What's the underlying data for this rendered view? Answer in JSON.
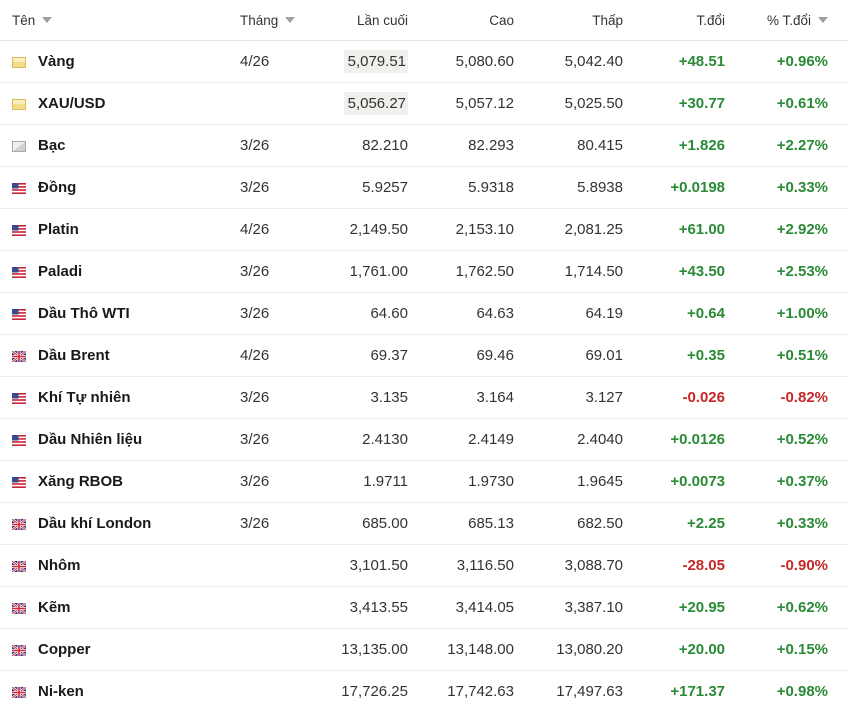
{
  "header": {
    "name": "Tên",
    "month": "Tháng",
    "last": "Lần cuối",
    "high": "Cao",
    "low": "Thấp",
    "change": "T.đổi",
    "pct_change": "% T.đổi"
  },
  "colors": {
    "up": "#2a8a36",
    "down": "#c62828",
    "highlight_bg": "#eef1ec"
  },
  "rows": [
    {
      "flag": "gold-icon",
      "name": "Vàng",
      "month": "4/26",
      "last": "5,079.51",
      "high": "5,080.60",
      "low": "5,042.40",
      "change": "+48.51",
      "pct": "+0.96%",
      "dir": "up",
      "hl": true
    },
    {
      "flag": "gold-icon",
      "name": "XAU/USD",
      "month": "",
      "last": "5,056.27",
      "high": "5,057.12",
      "low": "5,025.50",
      "change": "+30.77",
      "pct": "+0.61%",
      "dir": "up",
      "hl": true
    },
    {
      "flag": "silver-icon",
      "name": "Bạc",
      "month": "3/26",
      "last": "82.210",
      "high": "82.293",
      "low": "80.415",
      "change": "+1.826",
      "pct": "+2.27%",
      "dir": "up",
      "hl": false
    },
    {
      "flag": "us-flag-icon",
      "name": "Đồng",
      "month": "3/26",
      "last": "5.9257",
      "high": "5.9318",
      "low": "5.8938",
      "change": "+0.0198",
      "pct": "+0.33%",
      "dir": "up",
      "hl": false
    },
    {
      "flag": "us-flag-icon",
      "name": "Platin",
      "month": "4/26",
      "last": "2,149.50",
      "high": "2,153.10",
      "low": "2,081.25",
      "change": "+61.00",
      "pct": "+2.92%",
      "dir": "up",
      "hl": false
    },
    {
      "flag": "us-flag-icon",
      "name": "Paladi",
      "month": "3/26",
      "last": "1,761.00",
      "high": "1,762.50",
      "low": "1,714.50",
      "change": "+43.50",
      "pct": "+2.53%",
      "dir": "up",
      "hl": false
    },
    {
      "flag": "us-flag-icon",
      "name": "Dầu Thô WTI",
      "month": "3/26",
      "last": "64.60",
      "high": "64.63",
      "low": "64.19",
      "change": "+0.64",
      "pct": "+1.00%",
      "dir": "up",
      "hl": false
    },
    {
      "flag": "uk-flag-icon",
      "name": "Dầu Brent",
      "month": "4/26",
      "last": "69.37",
      "high": "69.46",
      "low": "69.01",
      "change": "+0.35",
      "pct": "+0.51%",
      "dir": "up",
      "hl": false
    },
    {
      "flag": "us-flag-icon",
      "name": "Khí Tự nhiên",
      "month": "3/26",
      "last": "3.135",
      "high": "3.164",
      "low": "3.127",
      "change": "-0.026",
      "pct": "-0.82%",
      "dir": "down",
      "hl": false
    },
    {
      "flag": "us-flag-icon",
      "name": "Dầu Nhiên liệu",
      "month": "3/26",
      "last": "2.4130",
      "high": "2.4149",
      "low": "2.4040",
      "change": "+0.0126",
      "pct": "+0.52%",
      "dir": "up",
      "hl": false
    },
    {
      "flag": "us-flag-icon",
      "name": "Xăng RBOB",
      "month": "3/26",
      "last": "1.9711",
      "high": "1.9730",
      "low": "1.9645",
      "change": "+0.0073",
      "pct": "+0.37%",
      "dir": "up",
      "hl": false
    },
    {
      "flag": "uk-flag-icon",
      "name": "Dầu khí London",
      "month": "3/26",
      "last": "685.00",
      "high": "685.13",
      "low": "682.50",
      "change": "+2.25",
      "pct": "+0.33%",
      "dir": "up",
      "hl": false
    },
    {
      "flag": "uk-flag-icon",
      "name": "Nhôm",
      "month": "",
      "last": "3,101.50",
      "high": "3,116.50",
      "low": "3,088.70",
      "change": "-28.05",
      "pct": "-0.90%",
      "dir": "down",
      "hl": false
    },
    {
      "flag": "uk-flag-icon",
      "name": "Kẽm",
      "month": "",
      "last": "3,413.55",
      "high": "3,414.05",
      "low": "3,387.10",
      "change": "+20.95",
      "pct": "+0.62%",
      "dir": "up",
      "hl": false
    },
    {
      "flag": "uk-flag-icon",
      "name": "Copper",
      "month": "",
      "last": "13,135.00",
      "high": "13,148.00",
      "low": "13,080.20",
      "change": "+20.00",
      "pct": "+0.15%",
      "dir": "up",
      "hl": false
    },
    {
      "flag": "uk-flag-icon",
      "name": "Ni-ken",
      "month": "",
      "last": "17,726.25",
      "high": "17,742.63",
      "low": "17,497.63",
      "change": "+171.37",
      "pct": "+0.98%",
      "dir": "up",
      "hl": false
    }
  ]
}
